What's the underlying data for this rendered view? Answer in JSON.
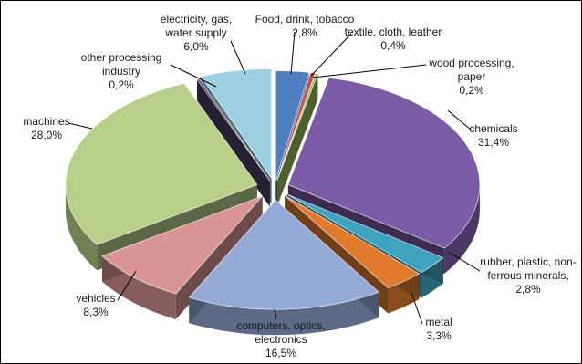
{
  "chart_data": {
    "type": "pie",
    "title": "",
    "slices": [
      {
        "name": "Food, drink, tobacco",
        "value": 2.8,
        "label": "2,8%",
        "color": "#4f7fc0"
      },
      {
        "name": "textile, cloth, leather",
        "value": 0.4,
        "label": "0,4%",
        "color": "#c0504d"
      },
      {
        "name": "wood processing, paper",
        "value": 0.2,
        "label": "0,2%",
        "color": "#9bbb59"
      },
      {
        "name": "chemicals",
        "value": 31.4,
        "label": "31,4%",
        "color": "#7b5aa6"
      },
      {
        "name": "rubber, plastic, non-ferrous minerals",
        "value": 2.8,
        "label": "2,8%",
        "color": "#3fa3bf"
      },
      {
        "name": "metal",
        "value": 3.3,
        "label": "3,3%",
        "color": "#e07b2e"
      },
      {
        "name": "computers, optics, electronics",
        "value": 16.5,
        "label": "16,5%",
        "color": "#94abd8"
      },
      {
        "name": "vehicles",
        "value": 8.3,
        "label": "8,3%",
        "color": "#d99594"
      },
      {
        "name": "machines",
        "value": 28.0,
        "label": "28,0%",
        "color": "#b8cf8a"
      },
      {
        "name": "other processing industry",
        "value": 0.2,
        "label": "0,2%",
        "color": "#4a4166"
      },
      {
        "name": "electricity, gas, water supply",
        "value": 6.0,
        "label": "6,0%",
        "color": "#9ccfe0"
      }
    ],
    "style": "3d-exploded",
    "legend": "none"
  }
}
